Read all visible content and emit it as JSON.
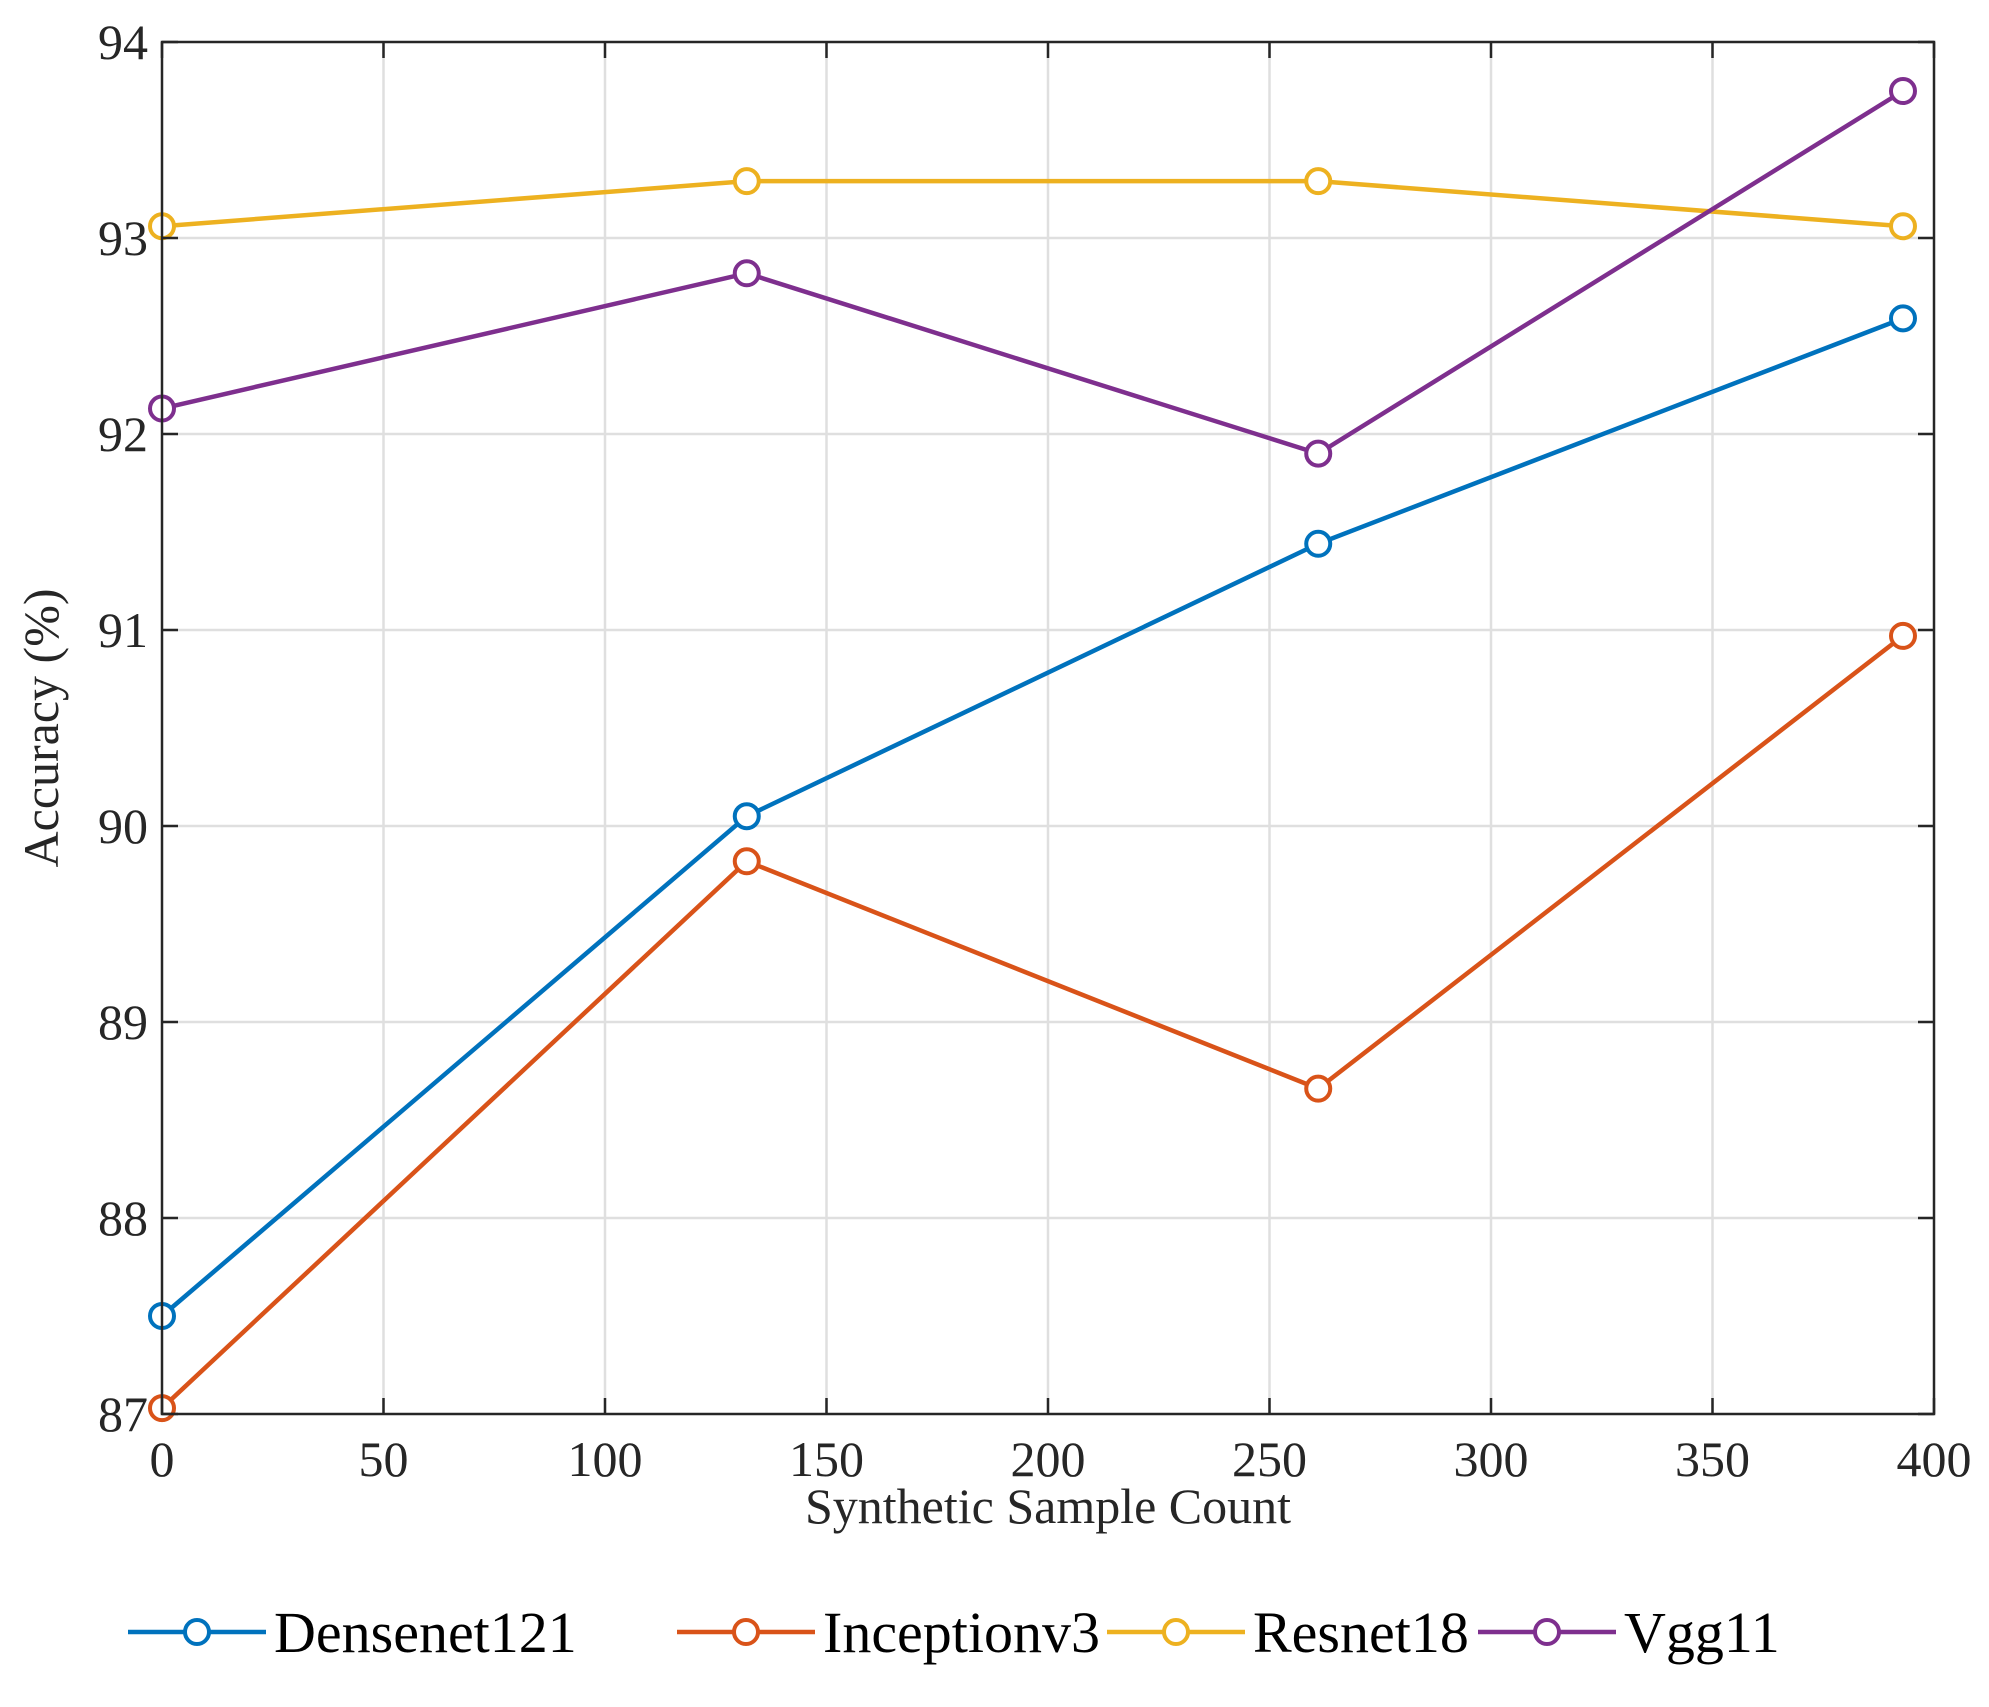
{
  "chart_data": {
    "type": "line",
    "title": "",
    "xlabel": "Synthetic Sample Count",
    "ylabel": "Accuracy (%)",
    "xlim": [
      0,
      400
    ],
    "ylim": [
      87,
      94
    ],
    "x_ticks": [
      0,
      50,
      100,
      150,
      200,
      250,
      300,
      350,
      400
    ],
    "y_ticks": [
      87,
      88,
      89,
      90,
      91,
      92,
      93,
      94
    ],
    "grid": true,
    "legend_position": "bottom",
    "x": [
      0,
      132,
      261,
      393
    ],
    "series": [
      {
        "name": "Densenet121",
        "color": "#0072BD",
        "marker": "circle",
        "values": [
          87.5,
          90.05,
          91.44,
          92.59
        ]
      },
      {
        "name": "Inceptionv3",
        "color": "#D95319",
        "marker": "circle",
        "values": [
          87.03,
          89.82,
          88.66,
          90.97
        ]
      },
      {
        "name": "Resnet18",
        "color": "#EDB120",
        "marker": "circle",
        "values": [
          93.06,
          93.29,
          93.29,
          93.06
        ]
      },
      {
        "name": "Vgg11",
        "color": "#7E2F8E",
        "marker": "circle",
        "values": [
          92.13,
          92.82,
          91.9,
          93.75
        ]
      }
    ]
  }
}
